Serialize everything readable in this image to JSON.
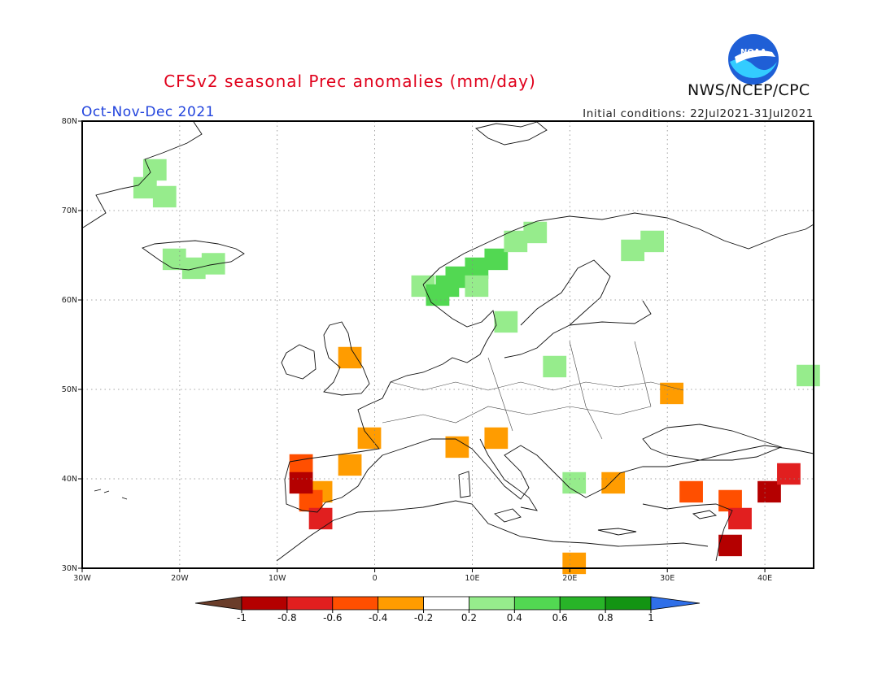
{
  "title": "CFSv2 seasonal Prec anomalies (mm/day)",
  "season": "Oct-Nov-Dec 2021",
  "initial_conditions": "Initial conditions: 22Jul2021-31Jul2021",
  "agency": "NWS/NCEP/CPC",
  "logo_text": "NOAA",
  "map": {
    "lon_range": [
      -30,
      45
    ],
    "lat_range": [
      30,
      80
    ],
    "lon_ticks": [
      {
        "lon": -30,
        "label": "30W"
      },
      {
        "lon": -20,
        "label": "20W"
      },
      {
        "lon": -10,
        "label": "10W"
      },
      {
        "lon": 0,
        "label": "0"
      },
      {
        "lon": 10,
        "label": "10E"
      },
      {
        "lon": 20,
        "label": "20E"
      },
      {
        "lon": 30,
        "label": "30E"
      },
      {
        "lon": 40,
        "label": "40E"
      }
    ],
    "lat_ticks": [
      {
        "lat": 30,
        "label": "30N"
      },
      {
        "lat": 40,
        "label": "40N"
      },
      {
        "lat": 50,
        "label": "50N"
      },
      {
        "lat": 60,
        "label": "60N"
      },
      {
        "lat": 70,
        "label": "70N"
      },
      {
        "lat": 80,
        "label": "80N"
      }
    ],
    "grid": true
  },
  "colorbar": {
    "labels": [
      "-1",
      "-0.8",
      "-0.6",
      "-0.4",
      "-0.2",
      "0.2",
      "0.4",
      "0.6",
      "0.8",
      "1"
    ],
    "colors": [
      "#e11f1f",
      "#ff4f00",
      "#ff9c00",
      "#ffffff",
      "#96ec8c",
      "#52d852",
      "#28b428",
      "#139413"
    ],
    "under_color": "#6a3d2a",
    "over_color": "#2f6fe8",
    "first_color": "#b40000"
  },
  "chart_data": {
    "type": "heatmap",
    "units": "mm/day",
    "cells": [
      {
        "lon": -23,
        "lat": 75,
        "v": 0.3
      },
      {
        "lon": -24,
        "lat": 73,
        "v": 0.3
      },
      {
        "lon": -22,
        "lat": 72,
        "v": 0.3
      },
      {
        "lon": -21,
        "lat": 65,
        "v": 0.3
      },
      {
        "lon": -19,
        "lat": 64,
        "v": 0.3
      },
      {
        "lon": -17,
        "lat": 64.5,
        "v": 0.3
      },
      {
        "lon": 4.5,
        "lat": 62,
        "v": 0.3
      },
      {
        "lon": 6,
        "lat": 61,
        "v": 0.5
      },
      {
        "lon": 7,
        "lat": 62,
        "v": 0.5
      },
      {
        "lon": 8,
        "lat": 63,
        "v": 0.5
      },
      {
        "lon": 10,
        "lat": 64,
        "v": 0.5
      },
      {
        "lon": 12,
        "lat": 65,
        "v": 0.5
      },
      {
        "lon": 14,
        "lat": 67,
        "v": 0.3
      },
      {
        "lon": 16,
        "lat": 68,
        "v": 0.3
      },
      {
        "lon": 10,
        "lat": 62,
        "v": 0.3
      },
      {
        "lon": 26,
        "lat": 66,
        "v": 0.3
      },
      {
        "lon": 28,
        "lat": 67,
        "v": 0.3
      },
      {
        "lon": 13,
        "lat": 58,
        "v": 0.3
      },
      {
        "lon": 18,
        "lat": 53,
        "v": 0.3
      },
      {
        "lon": 44,
        "lat": 52,
        "v": 0.3
      },
      {
        "lon": 20,
        "lat": 40,
        "v": 0.3
      },
      {
        "lon": -3,
        "lat": 54,
        "v": -0.3
      },
      {
        "lon": 30,
        "lat": 50,
        "v": -0.3
      },
      {
        "lon": -1,
        "lat": 45,
        "v": -0.3
      },
      {
        "lon": -3,
        "lat": 42,
        "v": -0.3
      },
      {
        "lon": -6,
        "lat": 39,
        "v": -0.3
      },
      {
        "lon": 8,
        "lat": 44,
        "v": -0.3
      },
      {
        "lon": 12,
        "lat": 45,
        "v": -0.3
      },
      {
        "lon": 24,
        "lat": 40,
        "v": -0.3
      },
      {
        "lon": 20,
        "lat": 31,
        "v": -0.3
      },
      {
        "lon": -8,
        "lat": 42,
        "v": -0.6
      },
      {
        "lon": -7,
        "lat": 38,
        "v": -0.5
      },
      {
        "lon": -6,
        "lat": 36,
        "v": -0.7
      },
      {
        "lon": -8,
        "lat": 40,
        "v": -0.9
      },
      {
        "lon": 32,
        "lat": 39,
        "v": -0.6
      },
      {
        "lon": 36,
        "lat": 38,
        "v": -0.6
      },
      {
        "lon": 40,
        "lat": 39,
        "v": -0.9
      },
      {
        "lon": 37,
        "lat": 36,
        "v": -0.8
      },
      {
        "lon": 36,
        "lat": 33,
        "v": -0.9
      },
      {
        "lon": 42,
        "lat": 41,
        "v": -0.8
      }
    ]
  }
}
